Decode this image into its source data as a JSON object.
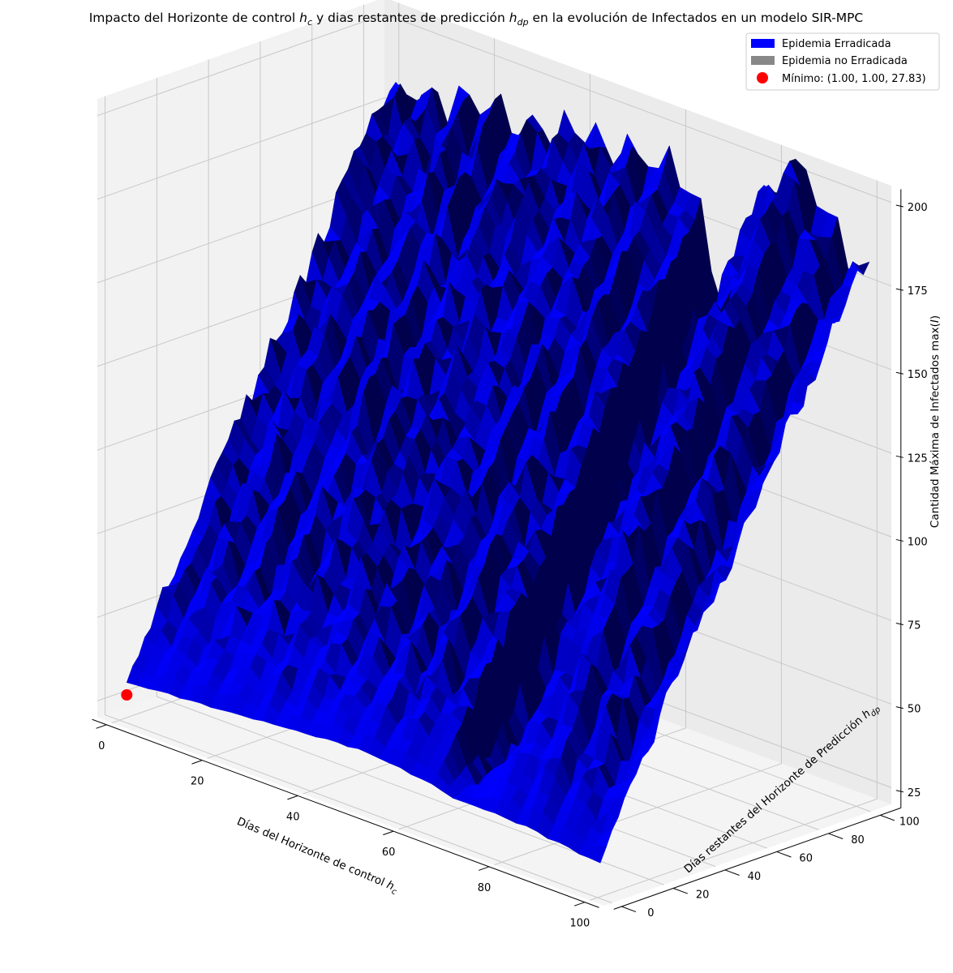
{
  "chart_data": {
    "type": "surface3d",
    "title_parts": {
      "a": "Impacto del Horizonte de control ",
      "hc_base": "h",
      "hc_sub": "c",
      "b": " y dias restantes de predicción ",
      "hdp_base": "h",
      "hdp_sub": "dp",
      "c": " en la evolución de Infectados en un modelo SIR-MPC"
    },
    "xlabel_parts": {
      "main": "Días del Horizonte de control ",
      "base": "h",
      "sub": "c"
    },
    "ylabel_parts": {
      "main": "Días restantes del Horizonte de Predicción ",
      "base": "h",
      "sub": "dp"
    },
    "zlabel_parts": {
      "main": "Cantidad Máxima de Infectados max(",
      "var": "I",
      "close": ")"
    },
    "xlim": [
      -3,
      103
    ],
    "ylim": [
      -3,
      108
    ],
    "zlim": [
      20,
      205
    ],
    "x_ticks": [
      "0",
      "20",
      "40",
      "60",
      "80",
      "100"
    ],
    "y_ticks": [
      "0",
      "20",
      "40",
      "60",
      "80",
      "100"
    ],
    "z_ticks": [
      "25",
      "50",
      "75",
      "100",
      "125",
      "150",
      "175",
      "200"
    ],
    "grid": true,
    "legend_position": "upper right",
    "legend": [
      {
        "label": "Epidemia Erradicada",
        "kind": "patch",
        "color": "#0000ff"
      },
      {
        "label": "Epidemia no Erradicada",
        "kind": "patch",
        "color": "#888888"
      },
      {
        "label": "Mínimo: (1.00, 1.00, 27.83)",
        "kind": "point",
        "color": "#ff0000"
      }
    ],
    "colors": {
      "surface": "#0000ff",
      "not_eradicated": "#888888",
      "minimum_marker": "#ff0000"
    },
    "minimum": {
      "x": 1.0,
      "y": 1.0,
      "z": 27.83
    },
    "surface_domain": {
      "x": [
        1,
        100
      ],
      "y": [
        1,
        105
      ]
    },
    "surface_profile": {
      "description": "max(I) rises with h_dp along hc=1..65 ridges, valley near hc≈70 and high plateau near hc≈85",
      "y_slope_main": 1.45,
      "peak_max_I": 205,
      "right_plateau_max_I": 197,
      "valley_max_I": 155
    }
  }
}
